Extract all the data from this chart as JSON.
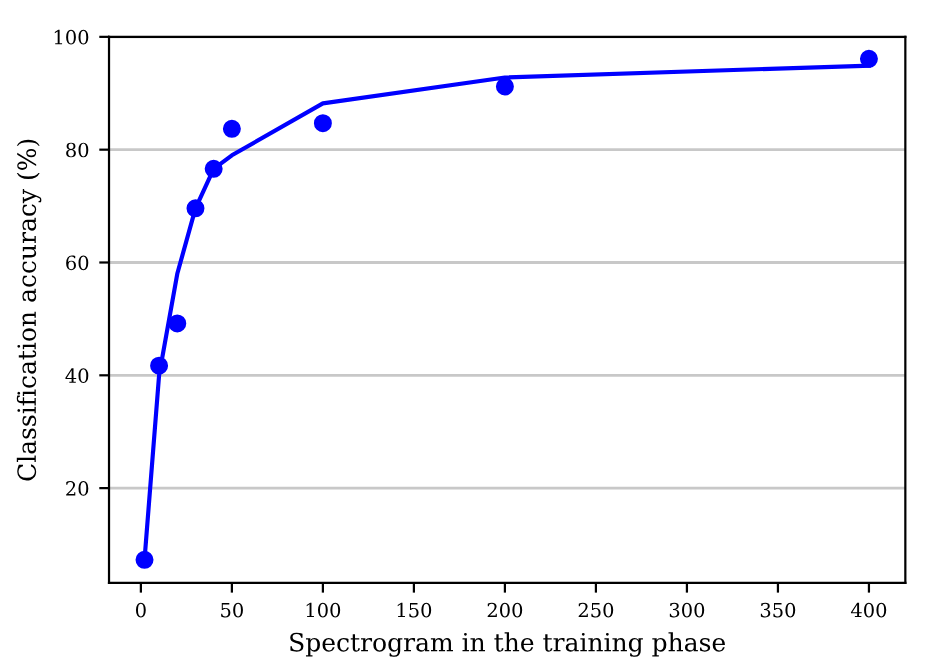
{
  "chart_data": {
    "type": "scatter",
    "xlabel": "Spectrogram in the training phase",
    "ylabel": "Classification accuracy (%)",
    "series": [
      {
        "color": "#0000ff",
        "marker": "circle",
        "x": [
          2,
          10,
          20,
          30,
          40,
          50,
          100,
          200,
          400
        ],
        "values": [
          7.3,
          41.7,
          49.2,
          69.6,
          76.6,
          83.7,
          84.7,
          91.2,
          96.1
        ]
      },
      {
        "type": "line",
        "color": "#0000ff",
        "marker": "none",
        "line_style": "solid",
        "x": [
          2,
          10,
          20,
          30,
          40,
          50,
          100,
          200,
          400
        ],
        "values": [
          7.3,
          40,
          58,
          69.6,
          76.6,
          79,
          88.2,
          92.8,
          94.9
        ]
      }
    ],
    "xlim": [
      -17.5,
      420
    ],
    "xticks": [
      0,
      50,
      100,
      150,
      200,
      250,
      300,
      350,
      400
    ],
    "ylim": [
      3.2,
      100
    ],
    "yticks": [
      20,
      40,
      60,
      80,
      100
    ],
    "grid": "y",
    "legend": false
  }
}
